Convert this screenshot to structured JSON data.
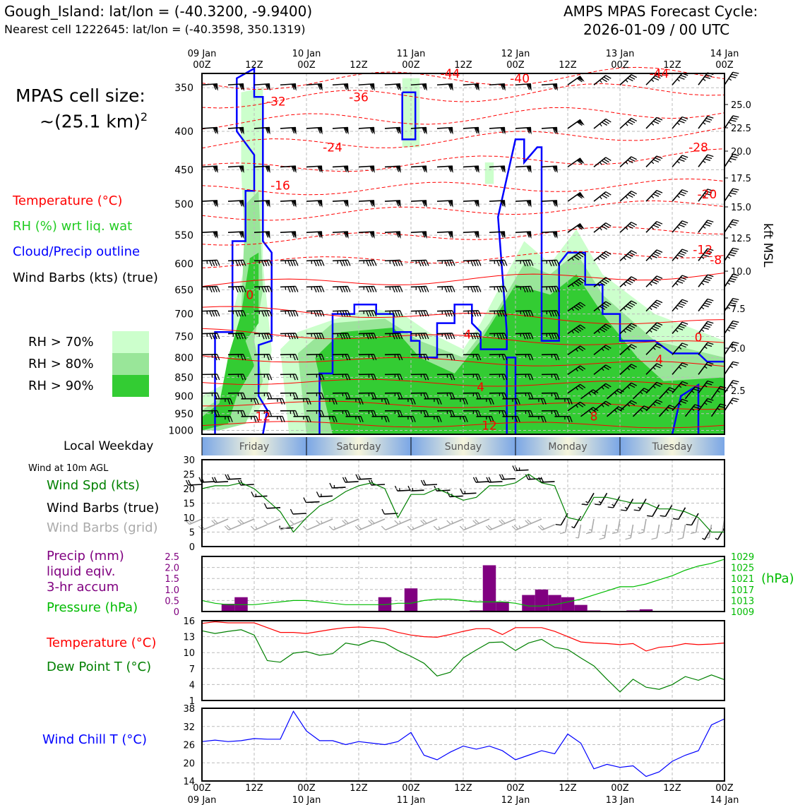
{
  "header": {
    "location": "Gough_Island: lat/lon = (-40.3200, -9.9400)",
    "nearest": "Nearest cell 1222645: lat/lon = (-40.3598, 350.1319)",
    "cycle_title": "AMPS MPAS Forecast Cycle:",
    "cycle_time": "2026-01-09 / 00 UTC"
  },
  "cell_size": {
    "line1": "MPAS cell size:",
    "line2": "~(25.1 km)",
    "sup": "2"
  },
  "legends": {
    "temperature": "Temperature (°C)",
    "rh": "RH (%) wrt liq. wat",
    "cloud": "Cloud/Precip outline",
    "barbs": "Wind Barbs (kts) (true)",
    "rh70": "RH > 70%",
    "rh80": "RH > 80%",
    "rh90": "RH > 90%",
    "weekday": "Local Weekday",
    "wind10m": "Wind at 10m AGL",
    "wspd": "Wind Spd (kts)",
    "wbarbs_true": "Wind Barbs (true)",
    "wbarbs_grid": "Wind Barbs (grid)",
    "precip1": "Precip (mm)",
    "precip2": "liquid eqiv.",
    "precip3": "3-hr accum",
    "pressure": "Pressure (hPa)",
    "temp2": "Temperature (°C)",
    "dew": "Dew Point T (°C)",
    "windchill": "Wind Chill T (°C)",
    "kft": "kft MSL",
    "hpa": "(hPa)"
  },
  "colors": {
    "temp": "#ff0000",
    "rh": "#22cc22",
    "cloud": "#0000ff",
    "barb": "#000000",
    "rh70": "#ccffcc",
    "rh80": "#99e699",
    "rh90": "#33cc33",
    "precip": "#800080",
    "pressure": "#00bb00",
    "dew": "#008000",
    "windchill": "#0000ff",
    "grid_barb": "#aaaaaa"
  },
  "chart_data": [
    {
      "type": "heatmap",
      "title": "time-height cross section",
      "x_top_ticks": [
        "09 Jan\n00Z",
        "12Z",
        "10 Jan\n00Z",
        "12Z",
        "11 Jan\n00Z",
        "12Z",
        "12 Jan\n00Z",
        "12Z",
        "13 Jan\n00Z",
        "12Z",
        "14 Jan\n00Z"
      ],
      "y_pressure_ticks": [
        350,
        400,
        450,
        500,
        550,
        600,
        650,
        700,
        750,
        800,
        850,
        900,
        950,
        1000
      ],
      "y_kft_ticks": [
        "25.0",
        "22.5",
        "20.0",
        "17.5",
        "15.0",
        "12.5",
        "10.0",
        "7.5",
        "5.0",
        "2.5"
      ],
      "temp_labels": [
        {
          "text": "-44",
          "t": 57,
          "p": 335
        },
        {
          "text": "-40",
          "t": 73,
          "p": 340
        },
        {
          "text": "-44",
          "t": 105,
          "p": 335
        },
        {
          "text": "-32",
          "t": 17,
          "p": 365
        },
        {
          "text": "-36",
          "t": 36,
          "p": 360
        },
        {
          "text": "-24",
          "t": 30,
          "p": 420
        },
        {
          "text": "-16",
          "t": 18,
          "p": 472
        },
        {
          "text": "-28",
          "t": 114,
          "p": 420
        },
        {
          "text": "-20",
          "t": 116,
          "p": 485
        },
        {
          "text": "-12",
          "t": 115,
          "p": 575
        },
        {
          "text": "-8",
          "t": 118,
          "p": 593
        },
        {
          "text": "0",
          "t": 11,
          "p": 660
        },
        {
          "text": "4",
          "t": 61,
          "p": 745
        },
        {
          "text": "0",
          "t": 114,
          "p": 752
        },
        {
          "text": "4",
          "t": 105,
          "p": 805
        },
        {
          "text": "4",
          "t": 64,
          "p": 875
        },
        {
          "text": "12",
          "t": 14,
          "p": 958
        },
        {
          "text": "12",
          "t": 66,
          "p": 985
        },
        {
          "text": "8",
          "t": 90,
          "p": 958
        }
      ]
    },
    {
      "type": "line",
      "title": "Wind Spd (kts)",
      "x_hours": [
        0,
        3,
        6,
        9,
        12,
        15,
        18,
        21,
        24,
        27,
        30,
        33,
        36,
        39,
        42,
        45,
        48,
        51,
        54,
        57,
        60,
        63,
        66,
        69,
        72,
        75,
        78,
        81,
        84,
        87,
        90,
        93,
        96,
        99,
        102,
        105,
        108,
        111,
        114,
        117,
        120
      ],
      "values": [
        20,
        21,
        21,
        22,
        20,
        16,
        12,
        5,
        10,
        14,
        16,
        19,
        21,
        22,
        20,
        10,
        18,
        18,
        20,
        18,
        16,
        17,
        21,
        21,
        22,
        25,
        22,
        21,
        10,
        9,
        17,
        17,
        16,
        15,
        15,
        13,
        13,
        12,
        10,
        5,
        5
      ],
      "ylim": [
        0,
        30
      ],
      "yticks": [
        0,
        5,
        10,
        15,
        20,
        25,
        30
      ]
    },
    {
      "type": "bar",
      "title": "Precip (mm) liquid eqiv. 3-hr accum",
      "x_hours": [
        6,
        9,
        42,
        48,
        63,
        66,
        69,
        72,
        75,
        78,
        81,
        84,
        87,
        90,
        93,
        99,
        102
      ],
      "values": [
        0.35,
        0.65,
        0.65,
        1.05,
        0.05,
        2.1,
        0.45,
        0.0,
        0.75,
        1.0,
        0.75,
        0.65,
        0.3,
        0.05,
        0.0,
        0.05,
        0.1
      ],
      "ylim": [
        0,
        2.5
      ],
      "yticks": [
        0,
        0.5,
        1.0,
        1.5,
        2.0,
        2.5
      ],
      "pressure_series": {
        "name": "Pressure (hPa)",
        "x_hours": [
          0,
          3,
          6,
          9,
          12,
          15,
          18,
          21,
          24,
          27,
          30,
          33,
          36,
          39,
          42,
          45,
          48,
          51,
          54,
          57,
          60,
          63,
          66,
          69,
          72,
          75,
          78,
          81,
          84,
          87,
          90,
          93,
          96,
          99,
          102,
          105,
          108,
          111,
          114,
          117,
          120
        ],
        "values": [
          1013,
          1012,
          1011.5,
          1011.5,
          1011.5,
          1012,
          1012.5,
          1013,
          1013,
          1012.5,
          1012,
          1011.5,
          1011.5,
          1011.5,
          1011.5,
          1012,
          1012,
          1013,
          1013.5,
          1013.5,
          1013,
          1012.5,
          1012.5,
          1012.5,
          1012,
          1011,
          1011,
          1011.5,
          1012.5,
          1013.5,
          1015,
          1016.5,
          1018,
          1018,
          1019,
          1020.5,
          1022,
          1024,
          1025.5,
          1026.5,
          1028
        ],
        "ylim": [
          1009,
          1029
        ],
        "yticks": [
          1009,
          1013,
          1017,
          1021,
          1025,
          1029
        ]
      }
    },
    {
      "type": "line",
      "title": "Temperature (°C) / Dew Point T (°C)",
      "x_hours": [
        0,
        3,
        6,
        9,
        12,
        15,
        18,
        21,
        24,
        27,
        30,
        33,
        36,
        39,
        42,
        45,
        48,
        51,
        54,
        57,
        60,
        63,
        66,
        69,
        72,
        75,
        78,
        81,
        84,
        87,
        90,
        93,
        96,
        99,
        102,
        105,
        108,
        111,
        114,
        117,
        120
      ],
      "series": [
        {
          "name": "Temperature (°C)",
          "values": [
            15.5,
            15.8,
            15.6,
            15.6,
            15.6,
            14.7,
            13.8,
            13.8,
            13.6,
            14.0,
            14.4,
            14.7,
            14.8,
            14.7,
            14.5,
            13.8,
            13.3,
            13.0,
            12.9,
            13.4,
            14.0,
            14.5,
            14.5,
            13.4,
            14.7,
            14.7,
            14.7,
            14.0,
            13.0,
            12.0,
            11.8,
            11.7,
            11.5,
            11.7,
            10.3,
            11.0,
            11.2,
            11.7,
            11.5,
            11.6,
            11.8
          ]
        },
        {
          "name": "Dew Point T (°C)",
          "values": [
            14.1,
            13.6,
            14.0,
            14.3,
            13.3,
            8.5,
            8.2,
            9.9,
            10.2,
            9.5,
            9.8,
            11.8,
            11.4,
            12.3,
            11.8,
            10.4,
            9.3,
            8.0,
            5.6,
            6.3,
            9.0,
            10.5,
            11.9,
            12.0,
            10.4,
            11.8,
            12.5,
            11.0,
            10.6,
            9.0,
            7.5,
            5.0,
            2.6,
            5.0,
            3.5,
            3.1,
            4.0,
            5.5,
            4.8,
            5.8,
            4.9
          ]
        }
      ],
      "ylim": [
        1,
        16
      ],
      "yticks": [
        1,
        4,
        7,
        10,
        13,
        16
      ]
    },
    {
      "type": "line",
      "title": "Wind Chill T (°C)",
      "x_hours": [
        0,
        3,
        6,
        9,
        12,
        15,
        18,
        21,
        24,
        27,
        30,
        33,
        36,
        39,
        42,
        45,
        48,
        51,
        54,
        57,
        60,
        63,
        66,
        69,
        72,
        75,
        78,
        81,
        84,
        87,
        90,
        93,
        96,
        99,
        102,
        105,
        108,
        111,
        114,
        117,
        120
      ],
      "values": [
        27,
        27.5,
        27,
        27.3,
        28,
        27.8,
        27.8,
        37,
        30.5,
        27.3,
        27.3,
        26,
        27,
        26.5,
        26,
        27,
        30,
        22.5,
        21,
        23.5,
        25.5,
        24.5,
        25.5,
        24,
        21,
        22.5,
        24,
        23,
        29.5,
        26.5,
        18,
        19.5,
        18.5,
        19,
        15.5,
        17,
        20.5,
        22.5,
        24,
        32.5,
        34.5
      ],
      "ylim": [
        14,
        38
      ],
      "yticks": [
        14,
        20,
        26,
        32,
        38
      ]
    }
  ],
  "weekdays": [
    "Friday",
    "Saturday",
    "Sunday",
    "Monday",
    "Tuesday"
  ],
  "bottom_ticks": [
    {
      "top": "00Z",
      "bot": "09 Jan"
    },
    {
      "top": "12Z",
      "bot": ""
    },
    {
      "top": "00Z",
      "bot": "10 Jan"
    },
    {
      "top": "12Z",
      "bot": ""
    },
    {
      "top": "00Z",
      "bot": "11 Jan"
    },
    {
      "top": "12Z",
      "bot": ""
    },
    {
      "top": "00Z",
      "bot": "12 Jan"
    },
    {
      "top": "12Z",
      "bot": ""
    },
    {
      "top": "00Z",
      "bot": "13 Jan"
    },
    {
      "top": "12Z",
      "bot": ""
    },
    {
      "top": "00Z",
      "bot": "14 Jan"
    }
  ]
}
